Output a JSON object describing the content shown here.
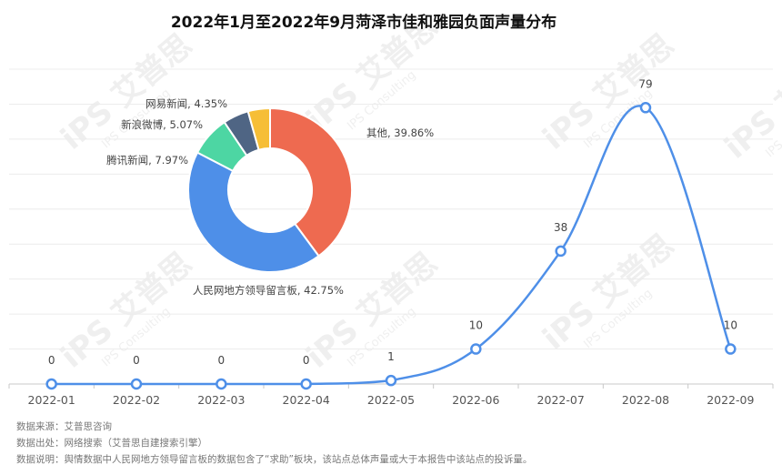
{
  "title": "2022年1月至2022年9月菏泽市佳和雅园负面声量分布",
  "watermark": {
    "logo": "iPS 艾普思",
    "text": "IPS Consulting"
  },
  "chart_data": [
    {
      "type": "line",
      "title": "2022年1月至2022年9月菏泽市佳和雅园负面声量分布",
      "categories": [
        "2022-01",
        "2022-02",
        "2022-03",
        "2022-04",
        "2022-05",
        "2022-06",
        "2022-07",
        "2022-08",
        "2022-09"
      ],
      "values": [
        0,
        0,
        0,
        0,
        1,
        10,
        38,
        79,
        10
      ],
      "ylim": [
        0,
        90
      ],
      "grid": true,
      "color": "#4e8fe8"
    },
    {
      "type": "pie",
      "donut": true,
      "slices": [
        {
          "label": "其他, 39.86%",
          "value": 39.86,
          "color": "#ee6a50"
        },
        {
          "label": "人民网地方领导留言板, 42.75%",
          "value": 42.75,
          "color": "#4e8fe8"
        },
        {
          "label": "腾讯新闻, 7.97%",
          "value": 7.97,
          "color": "#4dd6a3"
        },
        {
          "label": "新浪微博, 5.07%",
          "value": 5.07,
          "color": "#4f6584"
        },
        {
          "label": "网易新闻, 4.35%",
          "value": 4.35,
          "color": "#f6be36"
        }
      ]
    }
  ],
  "footer": {
    "source": "数据来源：艾普思咨询",
    "origin": "数据出处：网络搜索（艾普思自建搜索引擎）",
    "note": "数据说明：舆情数据中人民网地方领导留言板的数据包含了“求助”板块，该站点总体声量或大于本报告中该站点的投诉量。"
  }
}
